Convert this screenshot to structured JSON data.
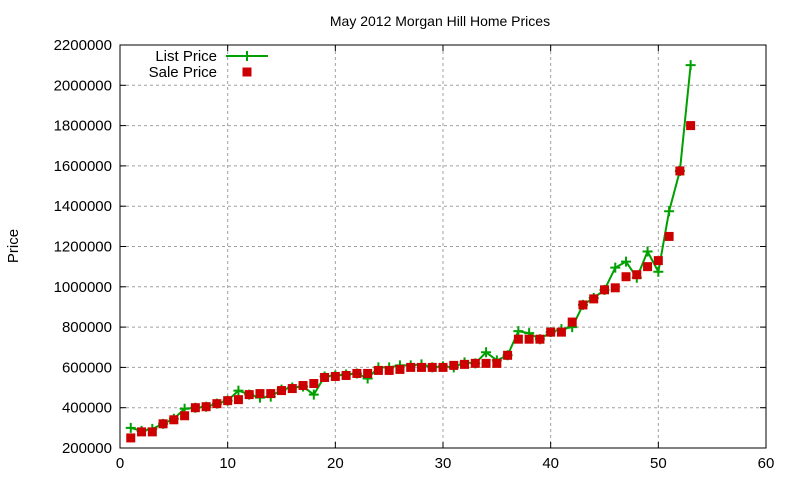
{
  "chart_data": {
    "type": "line",
    "title": "May 2012 Morgan Hill Home Prices",
    "xlabel": "",
    "ylabel": "Price",
    "xlim": [
      0,
      60
    ],
    "ylim": [
      200000,
      2200000
    ],
    "xticks": [
      0,
      10,
      20,
      30,
      40,
      50,
      60
    ],
    "yticks": [
      200000,
      400000,
      600000,
      800000,
      1000000,
      1200000,
      1400000,
      1600000,
      1800000,
      2000000,
      2200000
    ],
    "grid": true,
    "legend_position": "top-left",
    "x": [
      1,
      2,
      3,
      4,
      5,
      6,
      7,
      8,
      9,
      10,
      11,
      12,
      13,
      14,
      15,
      16,
      17,
      18,
      19,
      20,
      21,
      22,
      23,
      24,
      25,
      26,
      27,
      28,
      29,
      30,
      31,
      32,
      33,
      34,
      35,
      36,
      37,
      38,
      39,
      40,
      41,
      42,
      43,
      44,
      45,
      46,
      47,
      48,
      49,
      50,
      51,
      52,
      53
    ],
    "series": [
      {
        "name": "List Price",
        "style": "linespoints",
        "color": "#00a000",
        "values": [
          300000,
          285000,
          295000,
          320000,
          345000,
          395000,
          400000,
          405000,
          420000,
          435000,
          485000,
          465000,
          450000,
          455000,
          490000,
          500000,
          505000,
          465000,
          555000,
          560000,
          565000,
          570000,
          545000,
          600000,
          600000,
          610000,
          610000,
          615000,
          600000,
          605000,
          600000,
          625000,
          620000,
          675000,
          635000,
          660000,
          780000,
          770000,
          740000,
          775000,
          790000,
          800000,
          910000,
          945000,
          985000,
          1095000,
          1125000,
          1045000,
          1175000,
          1075000,
          1375000,
          1575000,
          2100000
        ]
      },
      {
        "name": "Sale Price",
        "style": "points",
        "color": "#cc0000",
        "values": [
          250000,
          280000,
          280000,
          320000,
          340000,
          360000,
          400000,
          405000,
          420000,
          435000,
          440000,
          465000,
          470000,
          470000,
          485000,
          495000,
          510000,
          520000,
          550000,
          555000,
          560000,
          570000,
          570000,
          585000,
          585000,
          590000,
          600000,
          600000,
          600000,
          600000,
          610000,
          615000,
          620000,
          620000,
          620000,
          660000,
          740000,
          740000,
          740000,
          775000,
          775000,
          825000,
          910000,
          940000,
          985000,
          995000,
          1050000,
          1060000,
          1100000,
          1130000,
          1250000,
          1575000,
          1800000
        ]
      }
    ]
  }
}
